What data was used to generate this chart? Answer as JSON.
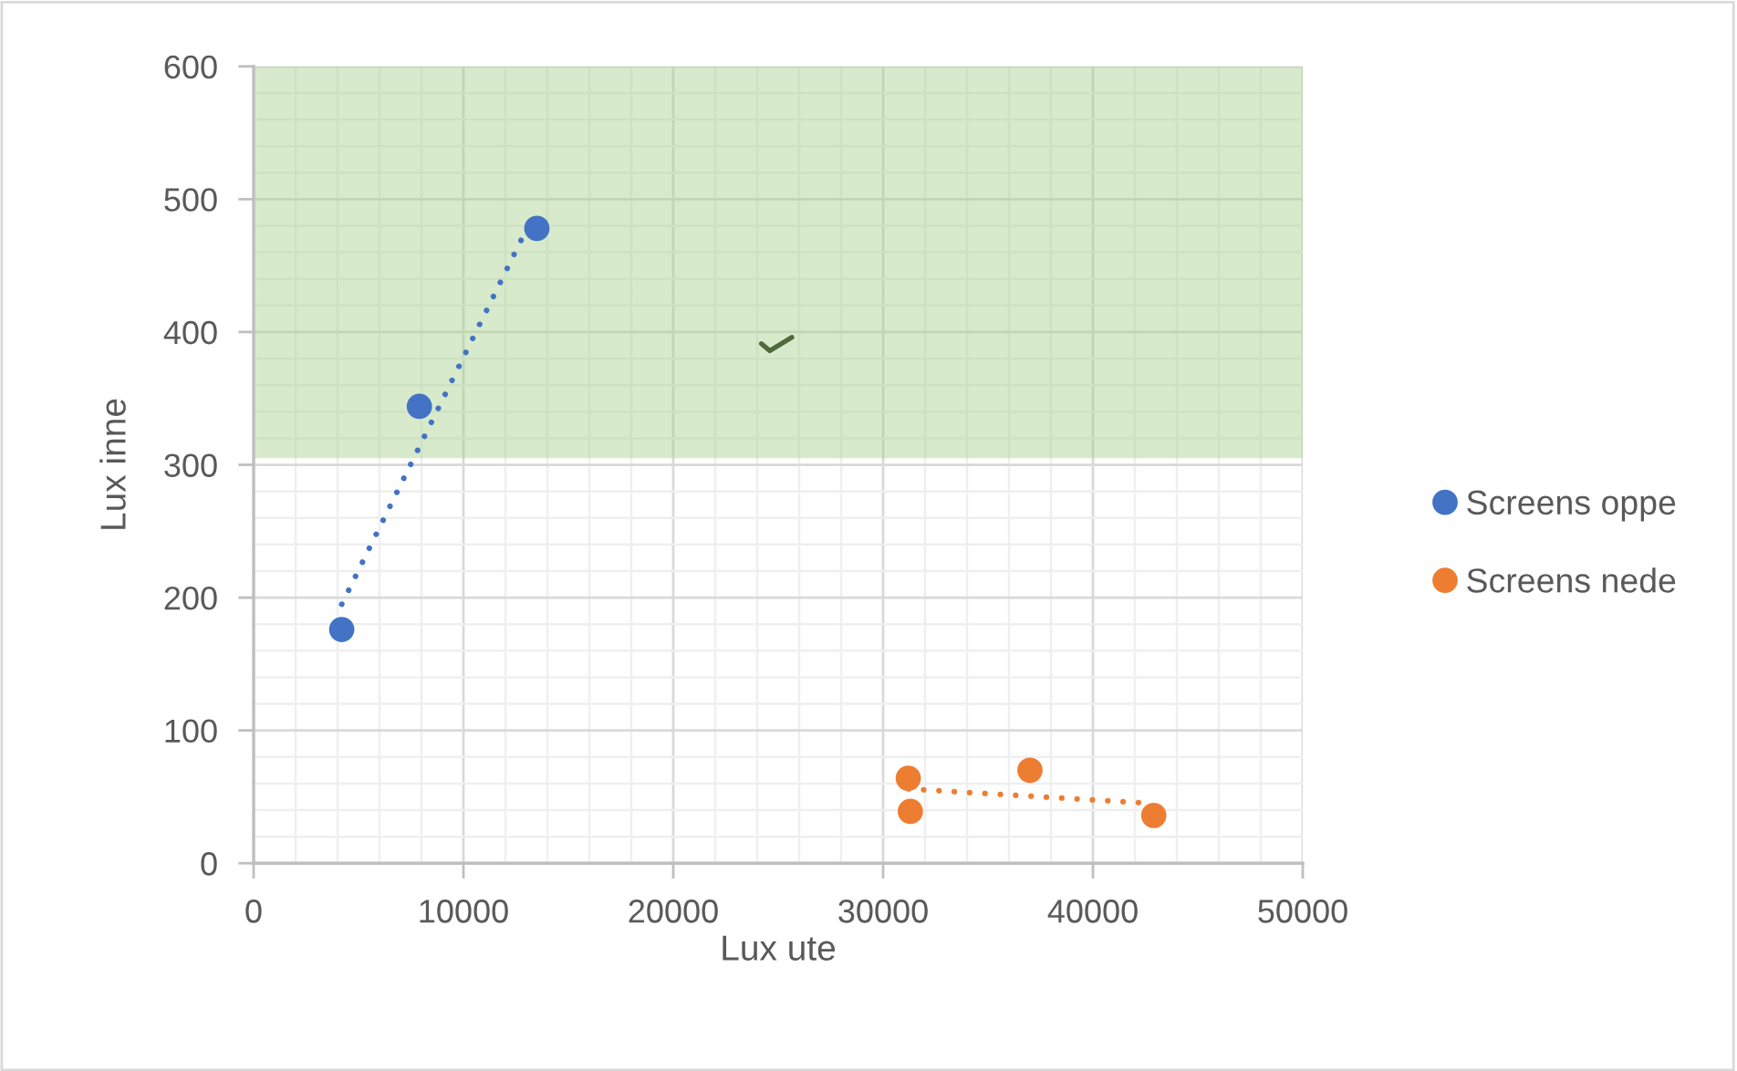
{
  "chart_data": {
    "type": "scatter",
    "xlabel": "Lux ute",
    "ylabel": "Lux inne",
    "xlim": [
      0,
      50000
    ],
    "xticks": [
      0,
      10000,
      20000,
      30000,
      40000,
      50000
    ],
    "ylim": [
      0,
      600
    ],
    "yticks": [
      0,
      100,
      200,
      300,
      400,
      500,
      600
    ],
    "grid": true,
    "legend": "right",
    "marker": "circle",
    "series": [
      {
        "name": "Screens oppe",
        "color": "#4472c4",
        "x": [
          4200,
          7900,
          13500
        ],
        "values": [
          176,
          344,
          478
        ]
      },
      {
        "name": "Screens nede",
        "color": "#ed7d31",
        "x": [
          31200,
          31300,
          37000,
          42900
        ],
        "values": [
          64,
          39,
          70,
          36
        ]
      },
      {
        "type": "line",
        "color": "#4472c4",
        "x": [
          4200,
          13400
        ],
        "values": [
          195,
          490
        ],
        "line_style": "dotted",
        "marker": "none"
      },
      {
        "type": "line",
        "color": "#ed7d31",
        "x": [
          31200,
          42900
        ],
        "values": [
          56,
          45
        ],
        "line_style": "dotted",
        "marker": "none"
      }
    ],
    "bands": [
      {
        "axis": "y",
        "from": 305,
        "to": 600,
        "color": "#a9d18e"
      }
    ]
  }
}
